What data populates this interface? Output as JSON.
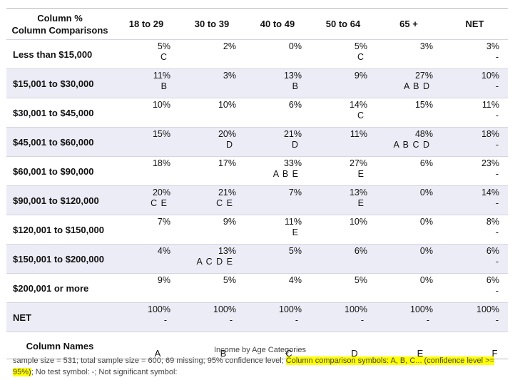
{
  "header": {
    "corner_line1": "Column %",
    "corner_line2": "Column Comparisons",
    "columns": [
      "18 to 29",
      "30 to 39",
      "40 to 49",
      "50 to 64",
      "65 +",
      "NET"
    ]
  },
  "rows": [
    {
      "label": "Less than $15,000",
      "cells": [
        [
          "5%",
          "C"
        ],
        [
          "2%",
          ""
        ],
        [
          "0%",
          ""
        ],
        [
          "5%",
          "C"
        ],
        [
          "3%",
          ""
        ],
        [
          "3%",
          "-"
        ]
      ]
    },
    {
      "label": "$15,001 to $30,000",
      "cells": [
        [
          "11%",
          "B"
        ],
        [
          "3%",
          ""
        ],
        [
          "13%",
          "B"
        ],
        [
          "9%",
          ""
        ],
        [
          "27%",
          "A B D"
        ],
        [
          "10%",
          "-"
        ]
      ]
    },
    {
      "label": "$30,001 to $45,000",
      "cells": [
        [
          "10%",
          ""
        ],
        [
          "10%",
          ""
        ],
        [
          "6%",
          ""
        ],
        [
          "14%",
          "C"
        ],
        [
          "15%",
          ""
        ],
        [
          "11%",
          "-"
        ]
      ]
    },
    {
      "label": "$45,001 to $60,000",
      "cells": [
        [
          "15%",
          ""
        ],
        [
          "20%",
          "D"
        ],
        [
          "21%",
          "D"
        ],
        [
          "11%",
          ""
        ],
        [
          "48%",
          "A B C D"
        ],
        [
          "18%",
          "-"
        ]
      ]
    },
    {
      "label": "$60,001 to $90,000",
      "cells": [
        [
          "18%",
          ""
        ],
        [
          "17%",
          ""
        ],
        [
          "33%",
          "A B E"
        ],
        [
          "27%",
          "E"
        ],
        [
          "6%",
          ""
        ],
        [
          "23%",
          "-"
        ]
      ]
    },
    {
      "label": "$90,001 to $120,000",
      "cells": [
        [
          "20%",
          "C E"
        ],
        [
          "21%",
          "C E"
        ],
        [
          "7%",
          ""
        ],
        [
          "13%",
          "E"
        ],
        [
          "0%",
          ""
        ],
        [
          "14%",
          "-"
        ]
      ]
    },
    {
      "label": "$120,001 to $150,000",
      "cells": [
        [
          "7%",
          ""
        ],
        [
          "9%",
          ""
        ],
        [
          "11%",
          "E"
        ],
        [
          "10%",
          ""
        ],
        [
          "0%",
          ""
        ],
        [
          "8%",
          "-"
        ]
      ]
    },
    {
      "label": "$150,001 to $200,000",
      "cells": [
        [
          "4%",
          ""
        ],
        [
          "13%",
          "A C D E"
        ],
        [
          "5%",
          ""
        ],
        [
          "6%",
          ""
        ],
        [
          "0%",
          ""
        ],
        [
          "6%",
          "-"
        ]
      ]
    },
    {
      "label": "$200,001 or more",
      "cells": [
        [
          "9%",
          ""
        ],
        [
          "5%",
          ""
        ],
        [
          "4%",
          ""
        ],
        [
          "5%",
          ""
        ],
        [
          "0%",
          ""
        ],
        [
          "6%",
          "-"
        ]
      ]
    },
    {
      "label": "NET",
      "cells": [
        [
          "100%",
          "-"
        ],
        [
          "100%",
          "-"
        ],
        [
          "100%",
          "-"
        ],
        [
          "100%",
          "-"
        ],
        [
          "100%",
          "-"
        ],
        [
          "100%",
          "-"
        ]
      ]
    }
  ],
  "names_row": {
    "label": "Column Names",
    "names": [
      "A",
      "B",
      "C",
      "D",
      "E",
      "F"
    ]
  },
  "caption": "Income by Age Categories",
  "footnote": {
    "part1": "sample size = 531; total sample size = 600; 69 missing; 95% confidence level; ",
    "highlight1": "Column comparison symbols: A, B, C... (confidence level >=",
    "highlight2": "95%)",
    "part2": "; No test symbol: -; Not significant symbol:"
  },
  "colors": {
    "highlight": "#ffff00",
    "row_shade": "#ececf6"
  }
}
